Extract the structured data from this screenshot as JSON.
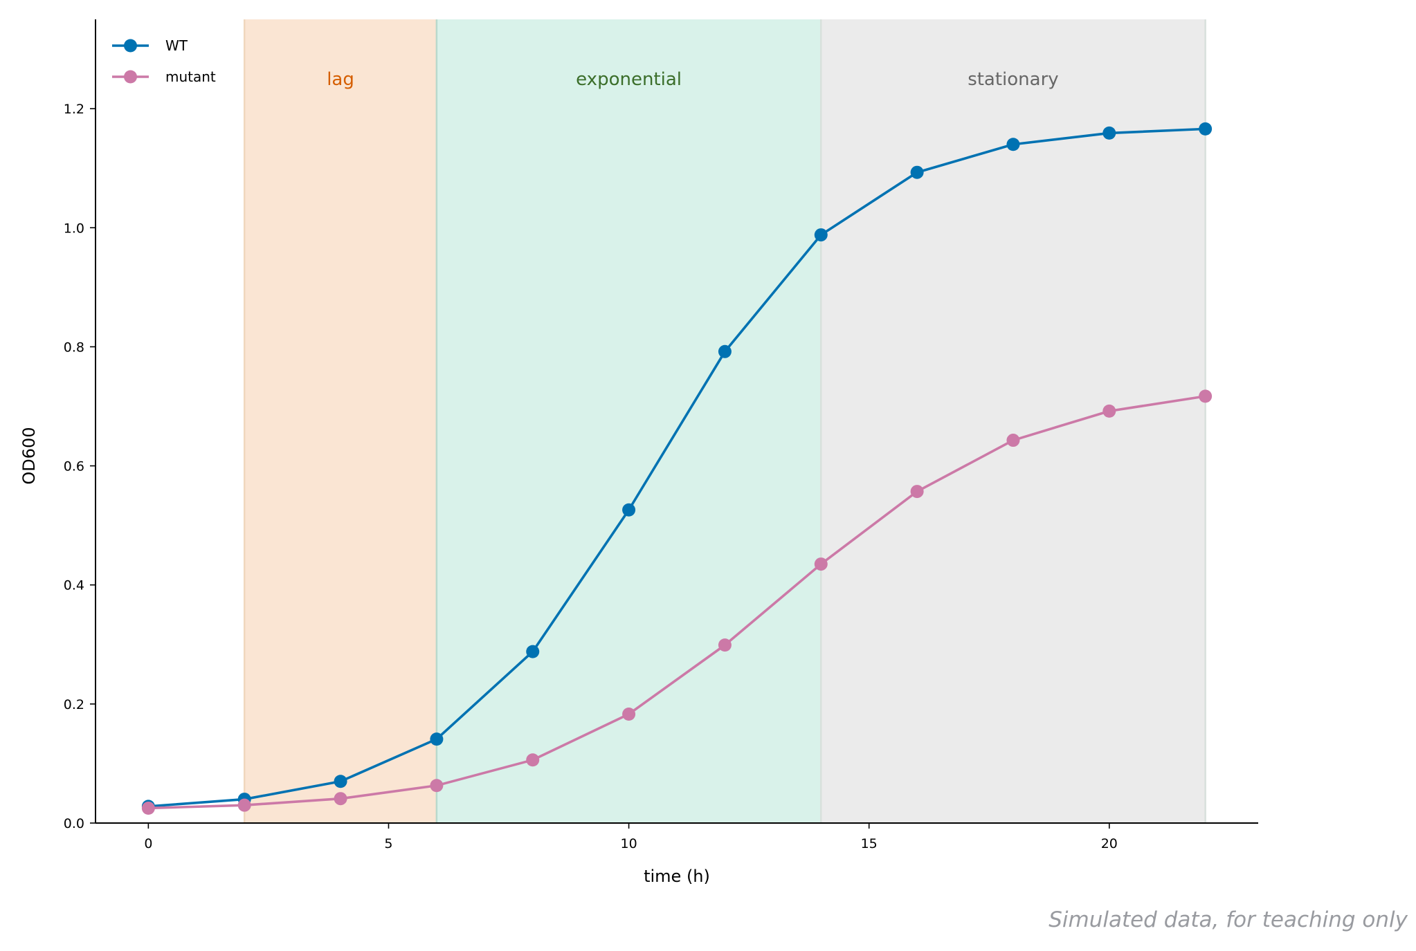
{
  "chart_data": {
    "type": "line",
    "xlabel": "time (h)",
    "ylabel": "OD600",
    "xlim": [
      -1.1,
      23.1
    ],
    "ylim": [
      0,
      1.35
    ],
    "xticks": [
      0,
      5,
      10,
      15,
      20
    ],
    "yticks": [
      0.0,
      0.2,
      0.4,
      0.6,
      0.8,
      1.0,
      1.2
    ],
    "ytick_labels": [
      "0.0",
      "0.2",
      "0.4",
      "0.6",
      "0.8",
      "1.0",
      "1.2"
    ],
    "grid": false,
    "legend_position": "top-left",
    "x": [
      0,
      2,
      4,
      6,
      8,
      10,
      12,
      14,
      16,
      18,
      20,
      22
    ],
    "series": [
      {
        "name": "WT",
        "color": "#0072b2",
        "values": [
          0.028,
          0.04,
          0.07,
          0.141,
          0.288,
          0.526,
          0.792,
          0.988,
          1.093,
          1.14,
          1.159,
          1.166
        ]
      },
      {
        "name": "mutant",
        "color": "#cc79a7",
        "values": [
          0.025,
          0.03,
          0.041,
          0.063,
          0.106,
          0.183,
          0.299,
          0.435,
          0.557,
          0.643,
          0.692,
          0.717
        ]
      }
    ],
    "phases": [
      {
        "label": "lag",
        "x_start": 2,
        "x_end": 6,
        "fill": "#fae5d3",
        "edge": "#f0d7bd",
        "text_color": "#d55e00"
      },
      {
        "label": "exponential",
        "x_start": 6,
        "x_end": 14,
        "fill": "#d9f2ea",
        "edge": "#b8d9cc",
        "text_color": "#3b6e2a"
      },
      {
        "label": "stationary",
        "x_start": 14,
        "x_end": 22,
        "fill": "#ebebeb",
        "edge": "#d8e0dc",
        "text_color": "#666666"
      }
    ]
  },
  "footnote": "Simulated data, for teaching only"
}
